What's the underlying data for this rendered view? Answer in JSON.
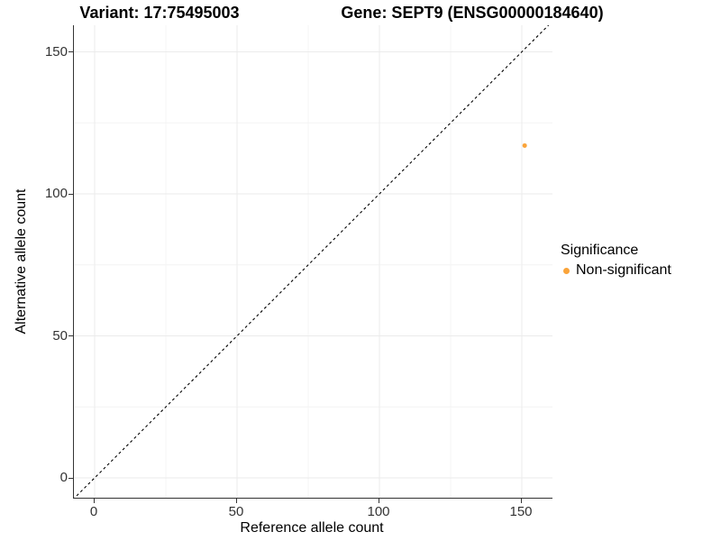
{
  "chart_data": {
    "type": "scatter",
    "title_variant": "Variant: 17:75495003",
    "title_gene": "Gene: SEPT9 (ENSG00000184640)",
    "xlabel": "Reference allele count",
    "ylabel": "Alternative allele count",
    "x_ticks": [
      0,
      50,
      100,
      150
    ],
    "y_ticks": [
      0,
      50,
      100,
      150
    ],
    "xlim": [
      -7.5,
      161
    ],
    "ylim": [
      -7,
      160
    ],
    "grid": true,
    "legend_position": "right",
    "legend": {
      "title": "Significance",
      "entries": [
        {
          "label": "Non-significant",
          "color": "#FAA43A"
        }
      ]
    },
    "series": [
      {
        "name": "Non-significant",
        "color": "#FAA43A",
        "points": [
          {
            "x": 151,
            "y": 117
          }
        ]
      }
    ],
    "reference_line": {
      "type": "identity",
      "slope": 1,
      "intercept": 0,
      "style": "dashed",
      "color": "#000000"
    }
  },
  "colors": {
    "background": "#FFFFFF",
    "grid_major": "#EBEBEB",
    "grid_minor": "#F4F4F4",
    "axis_line": "#333333",
    "tick_text": "#333333",
    "point": "#FAA43A",
    "text": "#000000"
  }
}
